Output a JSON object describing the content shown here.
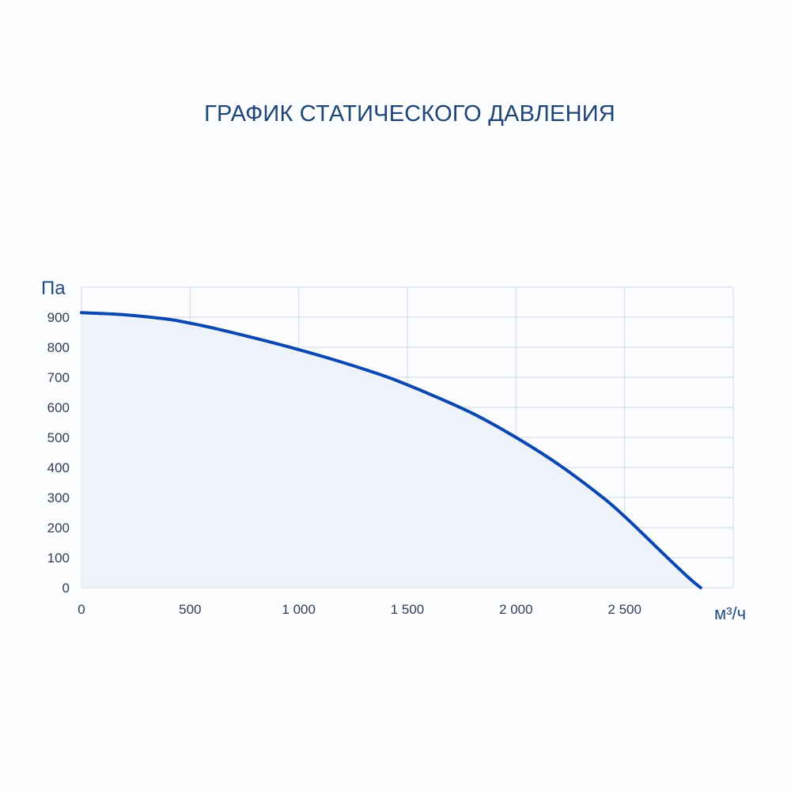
{
  "chart_data": {
    "type": "area",
    "title": "ГРАФИК СТАТИЧЕСКОГО ДАВЛЕНИЯ",
    "xlabel": "м³/ч",
    "ylabel": "Па",
    "xlim": [
      0,
      3000
    ],
    "ylim": [
      0,
      1000
    ],
    "grid": true,
    "x_ticks": [
      0,
      500,
      1000,
      1500,
      2000,
      2500,
      3000
    ],
    "x_tick_labels": [
      "0",
      "500",
      "1 000",
      "1 500",
      "2 000",
      "2 500"
    ],
    "y_ticks": [
      0,
      100,
      200,
      300,
      400,
      500,
      600,
      700,
      800,
      900,
      1000
    ],
    "y_tick_labels": [
      "0",
      "100",
      "200",
      "300",
      "400",
      "500",
      "600",
      "700",
      "800",
      "900"
    ],
    "series": [
      {
        "x": [
          0,
          200,
          400,
          500,
          600,
          800,
          1000,
          1200,
          1400,
          1500,
          1600,
          1800,
          2000,
          2200,
          2400,
          2500,
          2600,
          2700,
          2800,
          2850
        ],
        "y": [
          915,
          908,
          893,
          880,
          865,
          830,
          792,
          750,
          703,
          675,
          645,
          580,
          500,
          408,
          300,
          237,
          168,
          98,
          30,
          0
        ]
      }
    ],
    "colors": {
      "line": "#0b47b0",
      "area": "#eef3fa",
      "grid": "#d3d9e3",
      "plot_background": "#fafcfe",
      "title": "#1f4476",
      "ticks": "#2f3d55"
    }
  }
}
